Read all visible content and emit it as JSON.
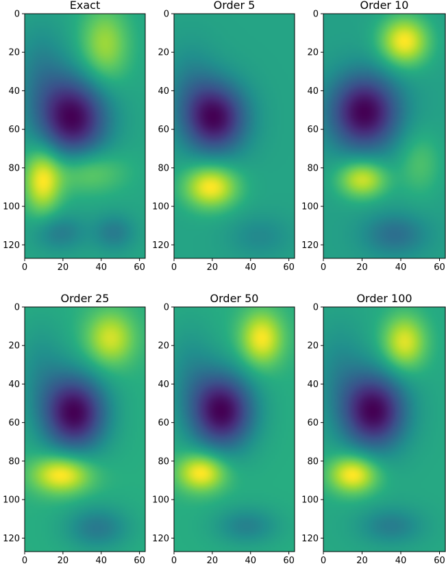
{
  "figure": {
    "background": "#ffffff"
  },
  "chart_data": [
    {
      "type": "heatmap",
      "title": "Exact",
      "xlim": [
        0,
        63
      ],
      "ylim": [
        127,
        0
      ],
      "xticks": [
        0,
        20,
        40,
        60
      ],
      "yticks": [
        0,
        20,
        40,
        60,
        80,
        100,
        120
      ],
      "colormap": "viridis",
      "features": [
        {
          "x": 25,
          "y": 54,
          "sx": 13,
          "sy": 15,
          "a": -1.0
        },
        {
          "x": 42,
          "y": 16,
          "sx": 9,
          "sy": 14,
          "a": 0.45
        },
        {
          "x": 9,
          "y": 87,
          "sx": 7,
          "sy": 12,
          "a": 0.65
        },
        {
          "x": 32,
          "y": 82,
          "sx": 14,
          "sy": 8,
          "a": 0.35
        },
        {
          "x": 18,
          "y": 114,
          "sx": 10,
          "sy": 7,
          "a": -0.3
        },
        {
          "x": 47,
          "y": 114,
          "sx": 8,
          "sy": 7,
          "a": -0.3
        },
        {
          "x": 8,
          "y": 30,
          "sx": 10,
          "sy": 18,
          "a": -0.25
        }
      ]
    },
    {
      "type": "heatmap",
      "title": "Order 5",
      "xlim": [
        0,
        63
      ],
      "ylim": [
        127,
        0
      ],
      "xticks": [
        0,
        20,
        40,
        60
      ],
      "yticks": [
        0,
        20,
        40,
        60,
        80,
        100,
        120
      ],
      "colormap": "viridis",
      "features": [
        {
          "x": 21,
          "y": 54,
          "sx": 12,
          "sy": 13,
          "a": -1.0
        },
        {
          "x": 19,
          "y": 90,
          "sx": 10,
          "sy": 8,
          "a": 0.75
        },
        {
          "x": 45,
          "y": 116,
          "sx": 12,
          "sy": 8,
          "a": -0.2
        },
        {
          "x": 8,
          "y": 35,
          "sx": 10,
          "sy": 15,
          "a": -0.2
        }
      ]
    },
    {
      "type": "heatmap",
      "title": "Order 10",
      "xlim": [
        0,
        63
      ],
      "ylim": [
        127,
        0
      ],
      "xticks": [
        0,
        20,
        40,
        60
      ],
      "yticks": [
        0,
        20,
        40,
        60,
        80,
        100,
        120
      ],
      "colormap": "viridis",
      "features": [
        {
          "x": 21,
          "y": 51,
          "sx": 13,
          "sy": 14,
          "a": -1.0
        },
        {
          "x": 42,
          "y": 14,
          "sx": 9,
          "sy": 9,
          "a": 0.75
        },
        {
          "x": 20,
          "y": 86,
          "sx": 9,
          "sy": 7,
          "a": 0.65
        },
        {
          "x": 50,
          "y": 78,
          "sx": 8,
          "sy": 12,
          "a": 0.25
        },
        {
          "x": 37,
          "y": 115,
          "sx": 12,
          "sy": 8,
          "a": -0.35
        }
      ]
    },
    {
      "type": "heatmap",
      "title": "Order 25",
      "xlim": [
        0,
        63
      ],
      "ylim": [
        127,
        0
      ],
      "xticks": [
        0,
        20,
        40,
        60
      ],
      "yticks": [
        0,
        20,
        40,
        60,
        80,
        100,
        120
      ],
      "colormap": "viridis",
      "features": [
        {
          "x": 26,
          "y": 55,
          "sx": 12,
          "sy": 14,
          "a": -1.0
        },
        {
          "x": 45,
          "y": 16,
          "sx": 9,
          "sy": 10,
          "a": 0.5
        },
        {
          "x": 19,
          "y": 87,
          "sx": 11,
          "sy": 7,
          "a": 0.65
        },
        {
          "x": 38,
          "y": 115,
          "sx": 12,
          "sy": 8,
          "a": -0.35
        },
        {
          "x": 8,
          "y": 32,
          "sx": 10,
          "sy": 18,
          "a": -0.2
        }
      ]
    },
    {
      "type": "heatmap",
      "title": "Order 50",
      "xlim": [
        0,
        63
      ],
      "ylim": [
        127,
        0
      ],
      "xticks": [
        0,
        20,
        40,
        60
      ],
      "yticks": [
        0,
        20,
        40,
        60,
        80,
        100,
        120
      ],
      "colormap": "viridis",
      "features": [
        {
          "x": 25,
          "y": 54,
          "sx": 12,
          "sy": 14,
          "a": -1.0
        },
        {
          "x": 46,
          "y": 16,
          "sx": 8,
          "sy": 10,
          "a": 0.6
        },
        {
          "x": 14,
          "y": 86,
          "sx": 9,
          "sy": 7,
          "a": 0.65
        },
        {
          "x": 38,
          "y": 114,
          "sx": 12,
          "sy": 7,
          "a": -0.3
        },
        {
          "x": 8,
          "y": 32,
          "sx": 10,
          "sy": 18,
          "a": -0.2
        }
      ]
    },
    {
      "type": "heatmap",
      "title": "Order 100",
      "xlim": [
        0,
        63
      ],
      "ylim": [
        127,
        0
      ],
      "xticks": [
        0,
        20,
        40,
        60
      ],
      "yticks": [
        0,
        20,
        40,
        60,
        80,
        100,
        120
      ],
      "colormap": "viridis",
      "features": [
        {
          "x": 26,
          "y": 54,
          "sx": 12,
          "sy": 14,
          "a": -1.0
        },
        {
          "x": 42,
          "y": 18,
          "sx": 8,
          "sy": 10,
          "a": 0.6
        },
        {
          "x": 15,
          "y": 87,
          "sx": 9,
          "sy": 7,
          "a": 0.7
        },
        {
          "x": 35,
          "y": 114,
          "sx": 12,
          "sy": 7,
          "a": -0.3
        },
        {
          "x": 8,
          "y": 32,
          "sx": 10,
          "sy": 18,
          "a": -0.2
        }
      ]
    }
  ]
}
